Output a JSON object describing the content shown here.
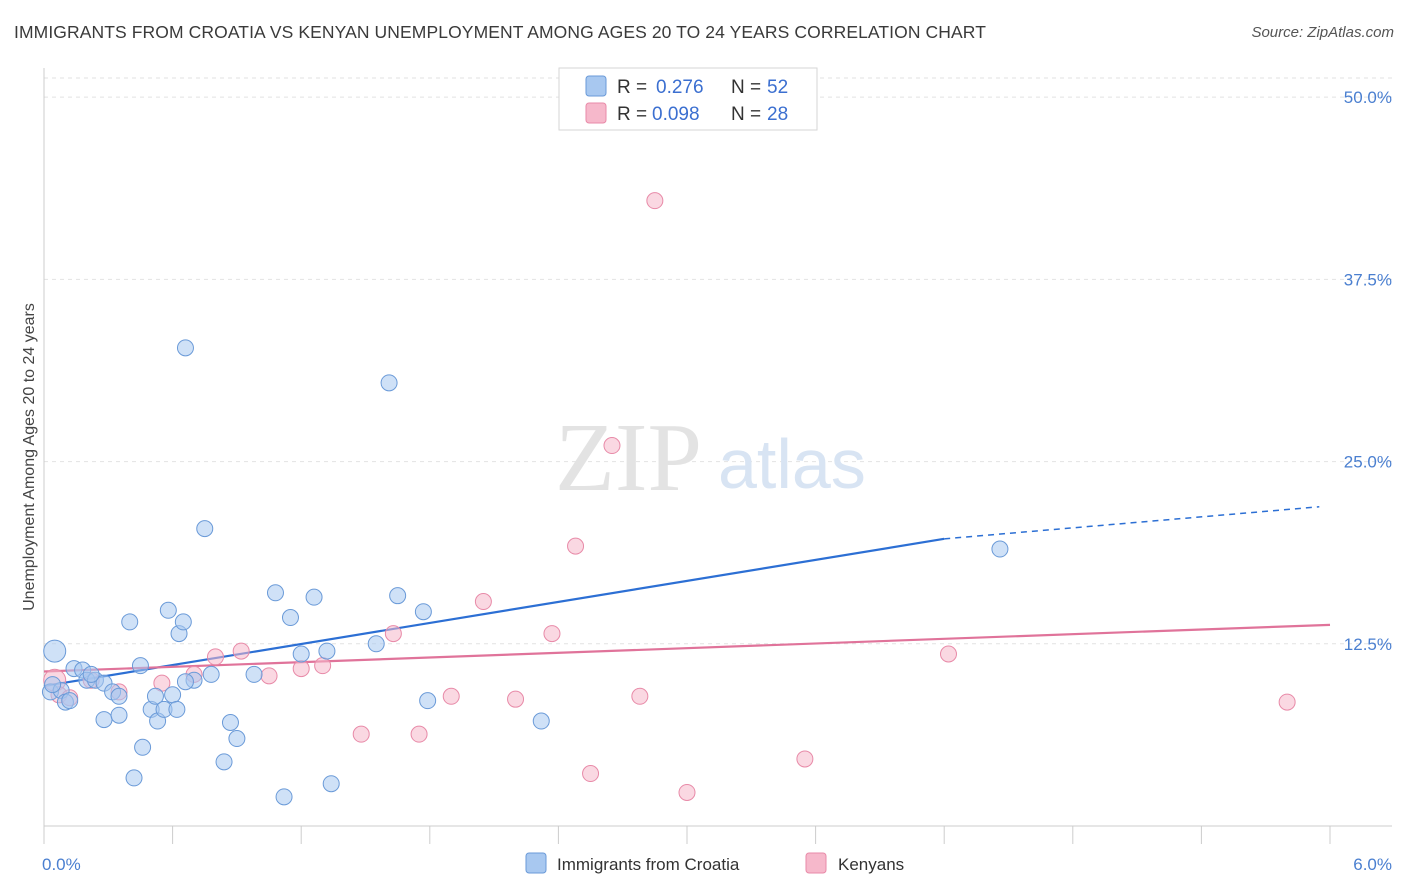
{
  "title": "IMMIGRANTS FROM CROATIA VS KENYAN UNEMPLOYMENT AMONG AGES 20 TO 24 YEARS CORRELATION CHART",
  "source": "Source: ZipAtlas.com",
  "watermark": {
    "zip": "ZIP",
    "atlas": "atlas"
  },
  "colors": {
    "blue_fill": "#a8c8f0",
    "blue_stroke": "#6a9ad8",
    "blue_line": "#2c6fd4",
    "pink_fill": "#f6b8cb",
    "pink_stroke": "#e88aa8",
    "pink_line": "#e0739a",
    "accent_text": "#4a7fd0"
  },
  "legend": {
    "rows": [
      {
        "r_label": "R =",
        "r_value": "0.276",
        "n_label": "N =",
        "n_value": "52"
      },
      {
        "r_label": "R =",
        "r_value": "0.098",
        "n_label": "N =",
        "n_value": "28"
      }
    ]
  },
  "chart_data": {
    "type": "scatter",
    "title": "IMMIGRANTS FROM CROATIA VS KENYAN UNEMPLOYMENT AMONG AGES 20 TO 24 YEARS CORRELATION CHART",
    "xlabel": "",
    "ylabel": "Unemployment Among Ages 20 to 24 years",
    "xlim": [
      0,
      6.0
    ],
    "ylim": [
      0,
      52
    ],
    "x_tick_labels": [
      "0.0%",
      "6.0%"
    ],
    "y_ticks": [
      12.5,
      25.0,
      37.5,
      50.0
    ],
    "y_tick_labels": [
      "12.5%",
      "25.0%",
      "37.5%",
      "50.0%"
    ],
    "grid": true,
    "legend_position": "top-center",
    "series": [
      {
        "name": "Immigrants from Croatia",
        "color": "#a8c8f0",
        "R": 0.276,
        "N": 52,
        "trend": {
          "x0": 0.0,
          "y0": 9.6,
          "x1": 4.2,
          "y1": 19.7,
          "dash_x1": 5.95,
          "dash_y1": 21.9
        },
        "points": [
          [
            0.05,
            12.0
          ],
          [
            0.03,
            9.2
          ],
          [
            0.08,
            9.3
          ],
          [
            0.1,
            8.5
          ],
          [
            0.12,
            8.6
          ],
          [
            0.14,
            10.8
          ],
          [
            0.18,
            10.7
          ],
          [
            0.2,
            10.0
          ],
          [
            0.24,
            10.0
          ],
          [
            0.28,
            9.8
          ],
          [
            0.32,
            9.2
          ],
          [
            0.35,
            8.9
          ],
          [
            0.28,
            7.3
          ],
          [
            0.35,
            7.6
          ],
          [
            0.4,
            14.0
          ],
          [
            0.45,
            11.0
          ],
          [
            0.46,
            5.4
          ],
          [
            0.42,
            3.3
          ],
          [
            0.5,
            8.0
          ],
          [
            0.52,
            8.9
          ],
          [
            0.53,
            7.2
          ],
          [
            0.56,
            8.0
          ],
          [
            0.58,
            14.8
          ],
          [
            0.6,
            9.0
          ],
          [
            0.62,
            8.0
          ],
          [
            0.63,
            13.2
          ],
          [
            0.65,
            14.0
          ],
          [
            0.66,
            32.8
          ],
          [
            0.7,
            10.0
          ],
          [
            0.75,
            20.4
          ],
          [
            0.78,
            10.4
          ],
          [
            0.84,
            4.4
          ],
          [
            0.87,
            7.1
          ],
          [
            0.9,
            6.0
          ],
          [
            0.98,
            10.4
          ],
          [
            1.08,
            16.0
          ],
          [
            1.12,
            2.0
          ],
          [
            1.15,
            14.3
          ],
          [
            1.2,
            11.8
          ],
          [
            1.26,
            15.7
          ],
          [
            1.32,
            12.0
          ],
          [
            1.34,
            2.9
          ],
          [
            1.55,
            12.5
          ],
          [
            1.61,
            30.4
          ],
          [
            1.65,
            15.8
          ],
          [
            1.77,
            14.7
          ],
          [
            1.79,
            8.6
          ],
          [
            2.32,
            7.2
          ],
          [
            4.46,
            19.0
          ],
          [
            0.04,
            9.7
          ],
          [
            0.22,
            10.4
          ],
          [
            0.66,
            9.9
          ]
        ]
      },
      {
        "name": "Kenyans",
        "color": "#f6b8cb",
        "R": 0.098,
        "N": 28,
        "trend": {
          "x0": 0.0,
          "y0": 10.6,
          "x1": 6.0,
          "y1": 13.8
        },
        "points": [
          [
            0.05,
            10.0
          ],
          [
            0.07,
            9.0
          ],
          [
            0.12,
            8.8
          ],
          [
            0.22,
            10.0
          ],
          [
            0.35,
            9.2
          ],
          [
            0.55,
            9.8
          ],
          [
            0.7,
            10.4
          ],
          [
            0.8,
            11.6
          ],
          [
            0.92,
            12.0
          ],
          [
            1.05,
            10.3
          ],
          [
            1.2,
            10.8
          ],
          [
            1.3,
            11.0
          ],
          [
            1.48,
            6.3
          ],
          [
            1.63,
            13.2
          ],
          [
            1.75,
            6.3
          ],
          [
            1.9,
            8.9
          ],
          [
            2.05,
            15.4
          ],
          [
            2.2,
            8.7
          ],
          [
            2.37,
            13.2
          ],
          [
            2.48,
            19.2
          ],
          [
            2.55,
            3.6
          ],
          [
            2.65,
            26.1
          ],
          [
            2.78,
            8.9
          ],
          [
            2.85,
            42.9
          ],
          [
            3.0,
            2.3
          ],
          [
            3.55,
            4.6
          ],
          [
            4.22,
            11.8
          ],
          [
            5.8,
            8.5
          ]
        ]
      }
    ]
  },
  "bottom_legend": {
    "items": [
      "Immigrants from Croatia",
      "Kenyans"
    ]
  }
}
